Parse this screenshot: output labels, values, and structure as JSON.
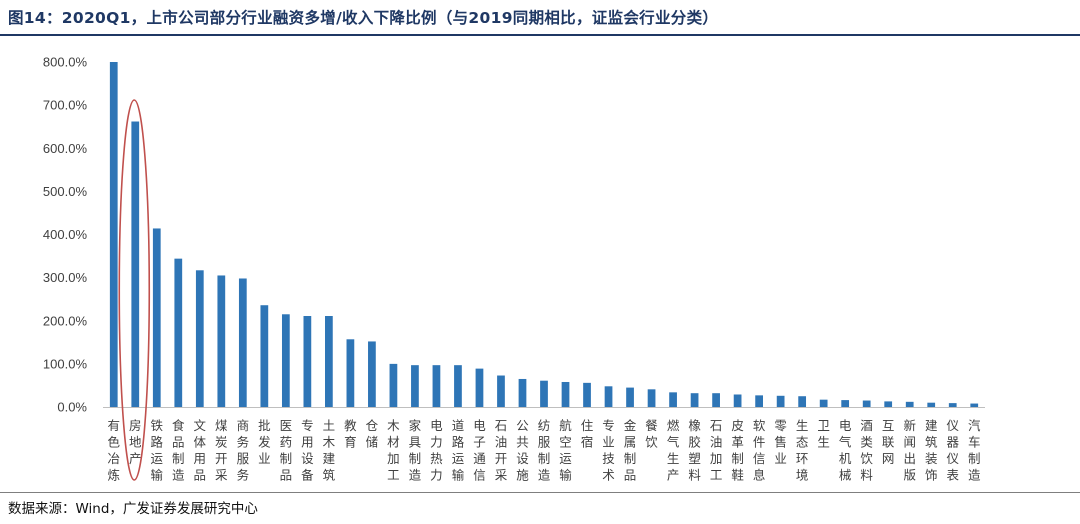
{
  "title": "图14：2020Q1，上市公司部分行业融资多增/收入下降比例（与2019同期相比，证监会行业分类）",
  "source": "数据来源：Wind，广发证券发展研究中心",
  "colors": {
    "bar": "#2e75b6",
    "highlight": "#c0504d",
    "title": "#1f3864"
  },
  "chart_data": {
    "type": "bar",
    "title": "2020Q1，上市公司部分行业融资多增/收入下降比例（与2019同期相比，证监会行业分类）",
    "xlabel": "",
    "ylabel": "",
    "ylim": [
      0,
      800
    ],
    "yticks": [
      0,
      100,
      200,
      300,
      400,
      500,
      600,
      700,
      800
    ],
    "ytick_labels": [
      "0.0%",
      "100.0%",
      "200.0%",
      "300.0%",
      "400.0%",
      "500.0%",
      "600.0%",
      "700.0%",
      "800.0%"
    ],
    "grid": false,
    "legend": "none",
    "highlighted_category": "房地产",
    "categories": [
      "有色冶炼",
      "房地产",
      "铁路运输",
      "食品制造",
      "文体用品",
      "煤炭开采",
      "商务服务",
      "批发业",
      "医药制品",
      "专用设备",
      "土木建筑",
      "教育",
      "仓储",
      "木材加工",
      "家具制造",
      "电力热力",
      "道路运输",
      "电子通信",
      "石油开采",
      "公共设施",
      "纺服制造",
      "航空运输",
      "住宿",
      "专业技术",
      "金属制品",
      "餐饮",
      "燃气生产",
      "橡胶塑料",
      "石油加工",
      "皮革制鞋",
      "软件信息",
      "零售业",
      "生态环境",
      "卫生",
      "电气机械",
      "酒类饮料",
      "互联网",
      "新闻出版",
      "建筑装饰",
      "仪器仪表",
      "汽车制造"
    ],
    "values": [
      800,
      662,
      414,
      344,
      317,
      305,
      298,
      236,
      215,
      211,
      211,
      157,
      152,
      100,
      97,
      97,
      97,
      89,
      73,
      65,
      61,
      58,
      56,
      48,
      45,
      41,
      34,
      32,
      32,
      29,
      27,
      26,
      25,
      17,
      16,
      15,
      13,
      12,
      10,
      9,
      8
    ]
  }
}
